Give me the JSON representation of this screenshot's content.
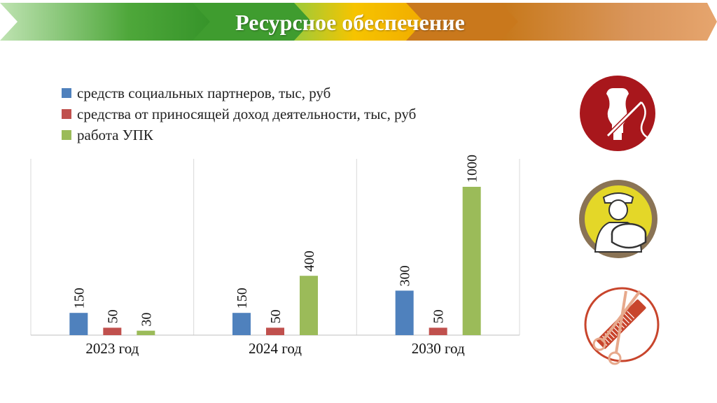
{
  "header": {
    "title": "Ресурсное обеспечение"
  },
  "colors": {
    "series1": "#4F81BD",
    "series2": "#C0504D",
    "series3": "#9BBB59",
    "banner_green": "#3E9A2E",
    "banner_yellow": "#F2B600",
    "banner_orange": "#D98A3A",
    "icon_red": "#A8171C",
    "icon_khaki": "#8A7355",
    "icon_yellow": "#E4D728"
  },
  "icons": [
    "mannequin-needle-icon",
    "cheesemaker-icon",
    "scissors-comb-icon"
  ],
  "chart_data": {
    "type": "bar",
    "categories": [
      "2023 год",
      "2024 год",
      "2030 год"
    ],
    "series": [
      {
        "name": "средств социальных партнеров, тыс, руб",
        "values": [
          150,
          150,
          300
        ]
      },
      {
        "name": "средства от приносящей доход деятельности, тыс, руб",
        "values": [
          50,
          50,
          50
        ]
      },
      {
        "name": "работа УПК",
        "values": [
          30,
          400,
          1000
        ]
      }
    ],
    "ylim": [
      0,
      1000
    ],
    "grid": false,
    "data_labels": true,
    "legend_position": "top-left"
  }
}
